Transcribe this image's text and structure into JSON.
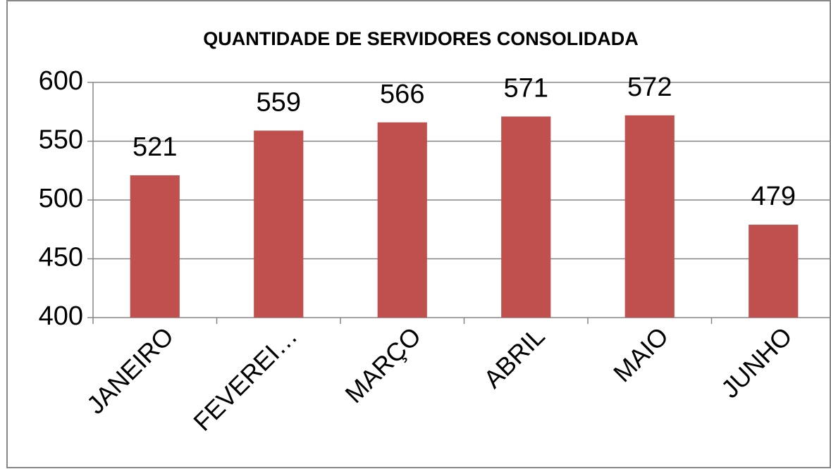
{
  "chart_data": {
    "type": "bar",
    "title": "QUANTIDADE DE SERVIDORES CONSOLIDADA",
    "categories": [
      "JANEIRO",
      "FEVEREI…",
      "MARÇO",
      "ABRIL",
      "MAIO",
      "JUNHO"
    ],
    "values": [
      521,
      559,
      566,
      571,
      572,
      479
    ],
    "color": "#c0504d",
    "ylim": [
      400,
      600
    ],
    "yticks": [
      400,
      450,
      500,
      550,
      600
    ],
    "grid": true
  }
}
